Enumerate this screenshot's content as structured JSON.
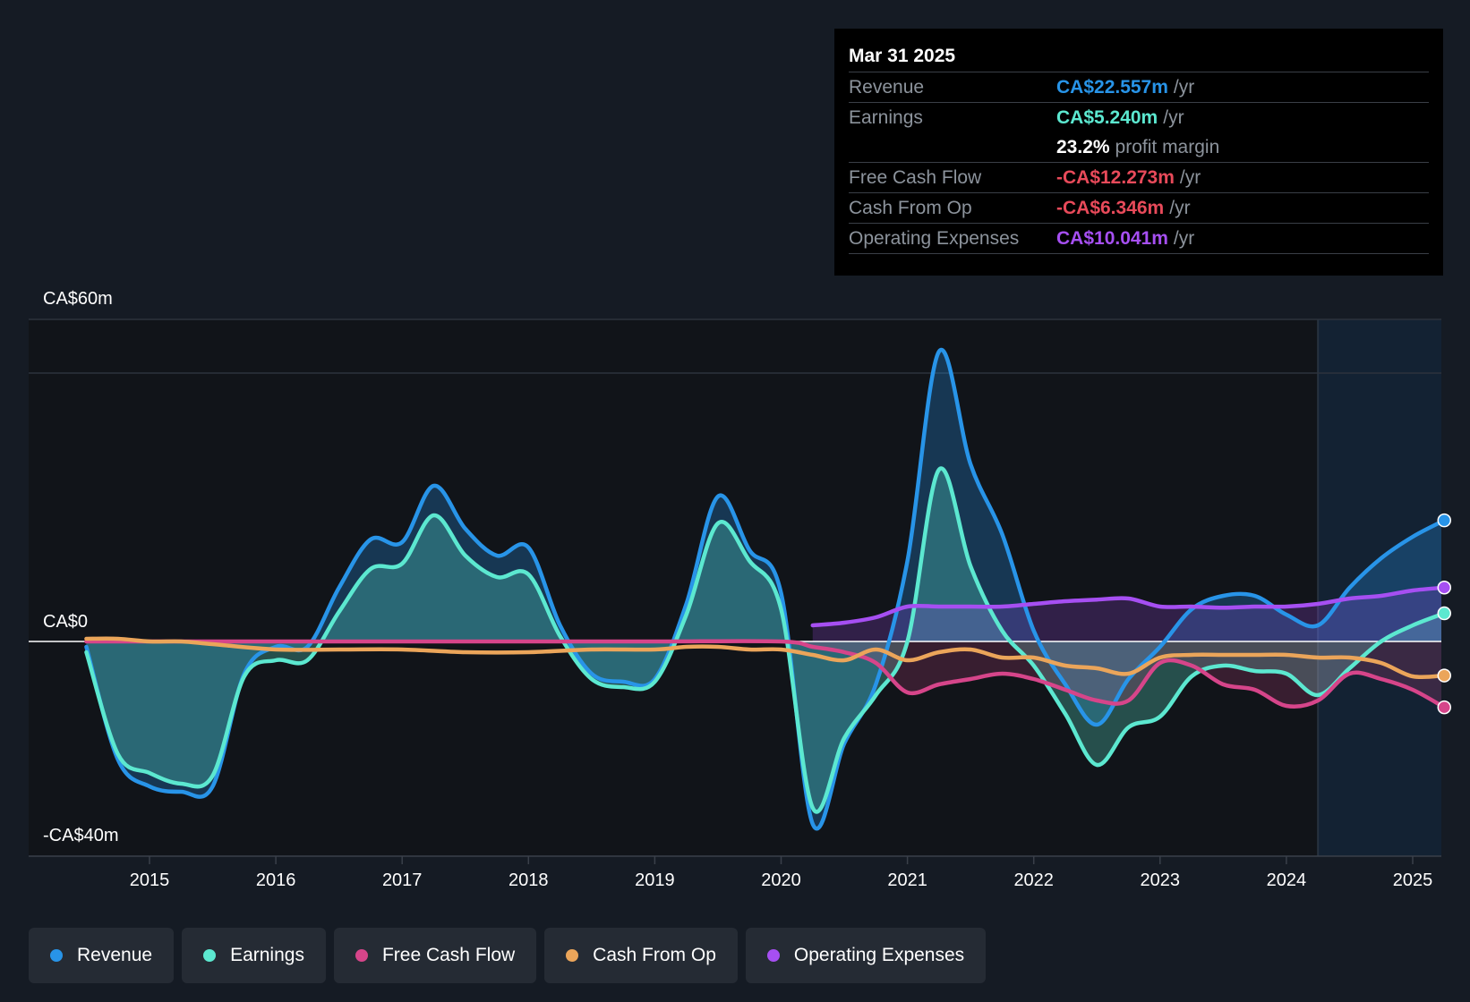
{
  "chart_data": {
    "type": "area",
    "title": "",
    "xlabel": "",
    "ylabel": "",
    "y_axis_labels": {
      "top": "CA$60m",
      "zero": "CA$0",
      "bottom": "-CA$40m"
    },
    "ylim": [
      -40,
      60
    ],
    "xlim": [
      2014.05,
      2025.25
    ],
    "x_ticks": [
      2015,
      2016,
      2017,
      2018,
      2019,
      2020,
      2021,
      2022,
      2023,
      2024,
      2025
    ],
    "x_tick_labels": [
      "2015",
      "2016",
      "2017",
      "2018",
      "2019",
      "2020",
      "2021",
      "2022",
      "2023",
      "2024",
      "2025"
    ],
    "forecast_start": 2024.25,
    "series": [
      {
        "name": "Revenue",
        "color": "#2894e8",
        "points": [
          [
            2014.5,
            -1
          ],
          [
            2014.75,
            -22
          ],
          [
            2015.0,
            -27
          ],
          [
            2015.25,
            -28
          ],
          [
            2015.5,
            -27
          ],
          [
            2015.75,
            -6
          ],
          [
            2016.0,
            -1
          ],
          [
            2016.25,
            -1
          ],
          [
            2016.5,
            10
          ],
          [
            2016.75,
            19
          ],
          [
            2017.0,
            18.5
          ],
          [
            2017.25,
            29
          ],
          [
            2017.5,
            21
          ],
          [
            2017.75,
            16
          ],
          [
            2018.0,
            17.5
          ],
          [
            2018.25,
            3
          ],
          [
            2018.5,
            -6
          ],
          [
            2018.75,
            -7.5
          ],
          [
            2019.0,
            -7
          ],
          [
            2019.25,
            7
          ],
          [
            2019.5,
            27
          ],
          [
            2019.75,
            17
          ],
          [
            2020.0,
            9
          ],
          [
            2020.25,
            -34
          ],
          [
            2020.5,
            -19
          ],
          [
            2020.75,
            -8
          ],
          [
            2021.0,
            15
          ],
          [
            2021.25,
            54
          ],
          [
            2021.5,
            33
          ],
          [
            2021.75,
            20
          ],
          [
            2022.0,
            2
          ],
          [
            2022.25,
            -8
          ],
          [
            2022.5,
            -15.5
          ],
          [
            2022.75,
            -7
          ],
          [
            2023.0,
            -1
          ],
          [
            2023.25,
            6
          ],
          [
            2023.5,
            8.5
          ],
          [
            2023.75,
            8.5
          ],
          [
            2024.0,
            5
          ],
          [
            2024.25,
            3
          ],
          [
            2024.5,
            10
          ],
          [
            2024.75,
            15.5
          ],
          [
            2025.0,
            19.5
          ],
          [
            2025.25,
            22.557
          ]
        ]
      },
      {
        "name": "Earnings",
        "color": "#5ce8d0",
        "points": [
          [
            2014.5,
            -2
          ],
          [
            2014.75,
            -21
          ],
          [
            2015.0,
            -24.5
          ],
          [
            2015.25,
            -26.5
          ],
          [
            2015.5,
            -25
          ],
          [
            2015.75,
            -6.5
          ],
          [
            2016.0,
            -3.5
          ],
          [
            2016.25,
            -3.5
          ],
          [
            2016.5,
            5.5
          ],
          [
            2016.75,
            13.5
          ],
          [
            2017.0,
            14.5
          ],
          [
            2017.25,
            23.5
          ],
          [
            2017.5,
            16
          ],
          [
            2017.75,
            12
          ],
          [
            2018.0,
            12.5
          ],
          [
            2018.25,
            1
          ],
          [
            2018.5,
            -7
          ],
          [
            2018.75,
            -8.5
          ],
          [
            2019.0,
            -7.5
          ],
          [
            2019.25,
            5
          ],
          [
            2019.5,
            22
          ],
          [
            2019.75,
            15
          ],
          [
            2020.0,
            6
          ],
          [
            2020.25,
            -31
          ],
          [
            2020.5,
            -18
          ],
          [
            2020.75,
            -10
          ],
          [
            2021.0,
            0
          ],
          [
            2021.25,
            32
          ],
          [
            2021.5,
            14
          ],
          [
            2021.75,
            2
          ],
          [
            2022.0,
            -4.5
          ],
          [
            2022.25,
            -13.5
          ],
          [
            2022.5,
            -23
          ],
          [
            2022.75,
            -16
          ],
          [
            2023.0,
            -14
          ],
          [
            2023.25,
            -6.5
          ],
          [
            2023.5,
            -4.5
          ],
          [
            2023.75,
            -5.5
          ],
          [
            2024.0,
            -6
          ],
          [
            2024.25,
            -10
          ],
          [
            2024.5,
            -5
          ],
          [
            2024.75,
            0
          ],
          [
            2025.0,
            3
          ],
          [
            2025.25,
            5.24
          ]
        ]
      },
      {
        "name": "Free Cash Flow",
        "color": "#d6458a",
        "points": [
          [
            2014.5,
            0
          ],
          [
            2015.0,
            0
          ],
          [
            2016.0,
            0
          ],
          [
            2017.0,
            0
          ],
          [
            2018.0,
            0
          ],
          [
            2019.0,
            0
          ],
          [
            2020.0,
            0
          ],
          [
            2020.25,
            -1
          ],
          [
            2020.5,
            -2
          ],
          [
            2020.75,
            -4
          ],
          [
            2021.0,
            -9.5
          ],
          [
            2021.25,
            -8
          ],
          [
            2021.5,
            -7
          ],
          [
            2021.75,
            -6
          ],
          [
            2022.0,
            -7
          ],
          [
            2022.25,
            -9
          ],
          [
            2022.5,
            -11
          ],
          [
            2022.75,
            -11
          ],
          [
            2023.0,
            -4
          ],
          [
            2023.25,
            -4.5
          ],
          [
            2023.5,
            -8
          ],
          [
            2023.75,
            -9
          ],
          [
            2024.0,
            -12
          ],
          [
            2024.25,
            -11
          ],
          [
            2024.5,
            -6
          ],
          [
            2024.75,
            -7
          ],
          [
            2025.0,
            -9
          ],
          [
            2025.25,
            -12.273
          ]
        ]
      },
      {
        "name": "Cash From Op",
        "color": "#eba55a",
        "points": [
          [
            2014.5,
            0.5
          ],
          [
            2014.75,
            0.5
          ],
          [
            2015.0,
            0
          ],
          [
            2015.25,
            0
          ],
          [
            2015.5,
            -0.5
          ],
          [
            2016.0,
            -1.5
          ],
          [
            2016.5,
            -1.5
          ],
          [
            2017.0,
            -1.5
          ],
          [
            2017.5,
            -2
          ],
          [
            2018.0,
            -2
          ],
          [
            2018.5,
            -1.5
          ],
          [
            2019.0,
            -1.5
          ],
          [
            2019.25,
            -1
          ],
          [
            2019.5,
            -1
          ],
          [
            2019.75,
            -1.5
          ],
          [
            2020.0,
            -1.5
          ],
          [
            2020.25,
            -2.5
          ],
          [
            2020.5,
            -3.5
          ],
          [
            2020.75,
            -1.5
          ],
          [
            2021.0,
            -3.5
          ],
          [
            2021.25,
            -2
          ],
          [
            2021.5,
            -1.5
          ],
          [
            2021.75,
            -3
          ],
          [
            2022.0,
            -3
          ],
          [
            2022.25,
            -4.5
          ],
          [
            2022.5,
            -5
          ],
          [
            2022.75,
            -6
          ],
          [
            2023.0,
            -3
          ],
          [
            2023.25,
            -2.5
          ],
          [
            2023.5,
            -2.5
          ],
          [
            2023.75,
            -2.5
          ],
          [
            2024.0,
            -2.5
          ],
          [
            2024.25,
            -3
          ],
          [
            2024.5,
            -3
          ],
          [
            2024.75,
            -4
          ],
          [
            2025.0,
            -6.5
          ],
          [
            2025.25,
            -6.346
          ]
        ]
      },
      {
        "name": "Operating Expenses",
        "color": "#a64ff2",
        "points": [
          [
            2020.25,
            3
          ],
          [
            2020.5,
            3.5
          ],
          [
            2020.75,
            4.5
          ],
          [
            2021.0,
            6.5
          ],
          [
            2021.25,
            6.5
          ],
          [
            2021.5,
            6.5
          ],
          [
            2021.75,
            6.5
          ],
          [
            2022.0,
            7
          ],
          [
            2022.25,
            7.5
          ],
          [
            2022.5,
            7.8
          ],
          [
            2022.75,
            8
          ],
          [
            2023.0,
            6.5
          ],
          [
            2023.25,
            6.5
          ],
          [
            2023.5,
            6.3
          ],
          [
            2023.75,
            6.5
          ],
          [
            2024.0,
            6.5
          ],
          [
            2024.25,
            7
          ],
          [
            2024.5,
            8
          ],
          [
            2024.75,
            8.5
          ],
          [
            2025.0,
            9.5
          ],
          [
            2025.25,
            10.041
          ]
        ]
      }
    ]
  },
  "tooltip": {
    "date": "Mar 31 2025",
    "rows": [
      {
        "name": "Revenue",
        "value": "CA$22.557m",
        "unit": "/yr",
        "color": "#2894e8"
      },
      {
        "name": "Earnings",
        "value": "CA$5.240m",
        "unit": "/yr",
        "color": "#5ce8d0"
      },
      {
        "name": "",
        "value": "23.2%",
        "unit": "profit margin",
        "color": "#ffffff"
      },
      {
        "name": "Free Cash Flow",
        "value": "-CA$12.273m",
        "unit": "/yr",
        "color": "#e84a5a"
      },
      {
        "name": "Cash From Op",
        "value": "-CA$6.346m",
        "unit": "/yr",
        "color": "#e84a5a"
      },
      {
        "name": "Operating Expenses",
        "value": "CA$10.041m",
        "unit": "/yr",
        "color": "#a64ff2"
      }
    ]
  },
  "legend": [
    {
      "label": "Revenue",
      "color": "#2894e8"
    },
    {
      "label": "Earnings",
      "color": "#5ce8d0"
    },
    {
      "label": "Free Cash Flow",
      "color": "#d6458a"
    },
    {
      "label": "Cash From Op",
      "color": "#eba55a"
    },
    {
      "label": "Operating Expenses",
      "color": "#a64ff2"
    }
  ]
}
